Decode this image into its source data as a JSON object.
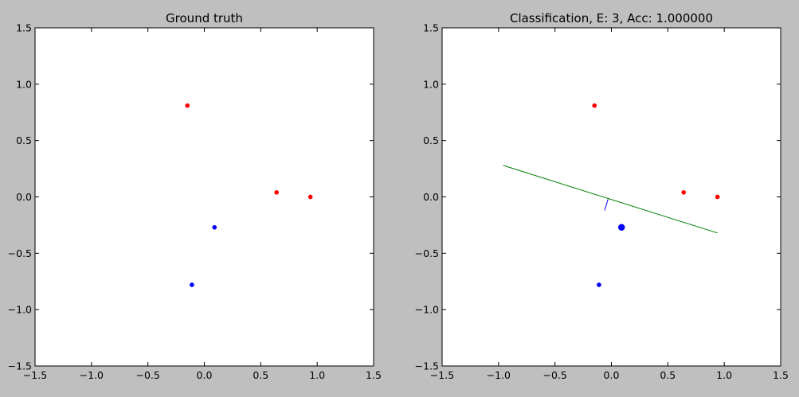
{
  "figure": {
    "background": "#bfbfbf"
  },
  "chart_data": [
    {
      "type": "scatter",
      "title": "Ground truth",
      "xlabel": "",
      "ylabel": "",
      "xlim": [
        -1.5,
        1.5
      ],
      "ylim": [
        -1.5,
        1.5
      ],
      "xticks": [
        -1.5,
        -1.0,
        -0.5,
        0.0,
        0.5,
        1.0,
        1.5
      ],
      "yticks": [
        -1.5,
        -1.0,
        -0.5,
        0.0,
        0.5,
        1.0,
        1.5
      ],
      "xtick_labels": [
        "−1.5",
        "−1.0",
        "−0.5",
        "0.0",
        "0.5",
        "1.0",
        "1.5"
      ],
      "ytick_labels": [
        "−1.5",
        "−1.0",
        "−0.5",
        "0.0",
        "0.5",
        "1.0",
        "1.5"
      ],
      "grid": false,
      "series": [
        {
          "color": "#ff0000",
          "points": [
            [
              -0.15,
              0.81
            ],
            [
              0.64,
              0.04
            ],
            [
              0.94,
              0.0
            ]
          ]
        },
        {
          "color": "#0000ff",
          "points": [
            [
              0.09,
              -0.27
            ],
            [
              -0.11,
              -0.78
            ]
          ]
        }
      ]
    },
    {
      "type": "scatter",
      "title": "Classification, E: 3, Acc: 1.000000",
      "xlabel": "",
      "ylabel": "",
      "xlim": [
        -1.5,
        1.5
      ],
      "ylim": [
        -1.5,
        1.5
      ],
      "xticks": [
        -1.5,
        -1.0,
        -0.5,
        0.0,
        0.5,
        1.0,
        1.5
      ],
      "yticks": [
        -1.5,
        -1.0,
        -0.5,
        0.0,
        0.5,
        1.0,
        1.5
      ],
      "xtick_labels": [
        "−1.5",
        "−1.0",
        "−0.5",
        "0.0",
        "0.5",
        "1.0",
        "1.5"
      ],
      "ytick_labels": [
        "−1.5",
        "−1.0",
        "−0.5",
        "0.0",
        "0.5",
        "1.0",
        "1.5"
      ],
      "grid": false,
      "series": [
        {
          "color": "#ff0000",
          "points": [
            [
              -0.15,
              0.81
            ],
            [
              0.64,
              0.04
            ],
            [
              0.94,
              0.0
            ]
          ]
        },
        {
          "color": "#0000ff",
          "points": [
            [
              -0.11,
              -0.78
            ]
          ]
        }
      ],
      "highlighted_point": {
        "color": "#0000ff",
        "point": [
          0.09,
          -0.27
        ]
      },
      "lines": [
        {
          "color": "#008000",
          "points": [
            [
              -0.96,
              0.28
            ],
            [
              0.94,
              -0.32
            ]
          ]
        },
        {
          "color": "#0000ff",
          "points": [
            [
              -0.03,
              -0.02
            ],
            [
              -0.06,
              -0.12
            ]
          ]
        }
      ]
    }
  ]
}
